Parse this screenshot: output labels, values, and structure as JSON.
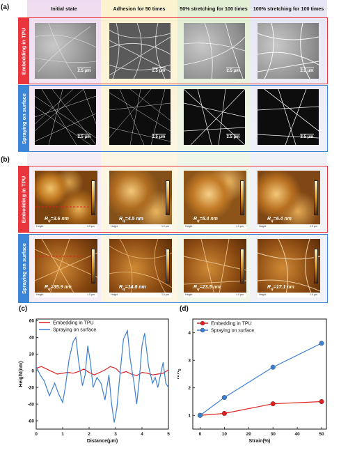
{
  "panel_labels": {
    "a": "(a)",
    "b": "(b)",
    "c": "(c)",
    "d": "(d)"
  },
  "columns": [
    {
      "title": "Initial state",
      "bg": "#eeddf0"
    },
    {
      "title": "Adhesion for 50 times",
      "bg": "#fbf2cf"
    },
    {
      "title": "50% stretching for 100 times",
      "bg": "#e5f0d8"
    },
    {
      "title": "100% stretching for 100 times",
      "bg": "#ececf6"
    }
  ],
  "rows": {
    "tpu": {
      "label": "Embedding in TPU",
      "color": "#e8363c"
    },
    "spray": {
      "label": "Spraying on surface",
      "color": "#3b86d6"
    }
  },
  "sem_scale": "2.5 μm",
  "afm": {
    "height_label": "Height",
    "scale": "1.0 μm",
    "tpu_rq": [
      "=3.6 nm",
      "=4.5 nm",
      "=5.4 nm",
      "=6.4 nm"
    ],
    "spray_rq": [
      "=35.9 nm",
      "=14.8 nm",
      "=23.5 nm",
      "=17.1 nm"
    ],
    "rq_symbol": "R",
    "rq_sub": "q"
  },
  "chart_data": [
    {
      "type": "line",
      "xlabel": "Distance(μm)",
      "ylabel": "Height(nm)",
      "xlim": [
        0,
        5
      ],
      "ylim": [
        -70,
        62
      ],
      "xticks": [
        "0",
        "1",
        "2",
        "3",
        "4",
        "5"
      ],
      "yticks": [
        "60",
        "40",
        "20",
        "0",
        "-20",
        "-40",
        "-60"
      ],
      "series": [
        {
          "name": "Embedding in TPU",
          "color": "#e02020",
          "x": [
            0,
            0.2,
            0.4,
            0.6,
            0.8,
            1.0,
            1.2,
            1.4,
            1.6,
            1.8,
            2.0,
            2.2,
            2.4,
            2.6,
            2.8,
            3.0,
            3.2,
            3.4,
            3.6,
            3.8,
            4.0,
            4.2,
            4.4,
            4.6,
            4.8,
            5.0
          ],
          "y": [
            3,
            5,
            2,
            -1,
            -4,
            -3,
            -2,
            -3,
            -1,
            2,
            -2,
            -5,
            -2,
            1,
            5,
            3,
            -3,
            -1,
            -4,
            -6,
            -2,
            -3,
            -5,
            -4,
            -3,
            1
          ]
        },
        {
          "name": "Spraying on surface",
          "color": "#3a80d0",
          "x": [
            0,
            0.15,
            0.3,
            0.5,
            0.7,
            0.85,
            1.0,
            1.1,
            1.25,
            1.4,
            1.5,
            1.6,
            1.75,
            1.85,
            1.95,
            2.05,
            2.15,
            2.3,
            2.45,
            2.6,
            2.75,
            2.85,
            2.95,
            3.05,
            3.15,
            3.3,
            3.45,
            3.55,
            3.7,
            3.8,
            3.9,
            4.0,
            4.1,
            4.25,
            4.4,
            4.5,
            4.6,
            4.7,
            4.8,
            4.9,
            5.0
          ],
          "y": [
            5,
            -5,
            -12,
            -30,
            -15,
            -28,
            -38,
            -20,
            15,
            35,
            40,
            12,
            -18,
            -5,
            30,
            10,
            -20,
            -8,
            -15,
            -35,
            -5,
            -40,
            -62,
            -45,
            -10,
            38,
            48,
            15,
            -15,
            -40,
            -10,
            30,
            45,
            5,
            -15,
            -8,
            -20,
            -5,
            10,
            -15,
            -20
          ]
        }
      ]
    },
    {
      "type": "line",
      "xlabel": "Strain(%)",
      "ylabel": "R/R",
      "ylabel_sub": "0",
      "xlim": [
        -3,
        52
      ],
      "ylim": [
        0.5,
        4.5
      ],
      "xticks": [
        "0",
        "10",
        "20",
        "30",
        "40",
        "50"
      ],
      "yticks": [
        "1",
        "2",
        "3",
        "4"
      ],
      "series": [
        {
          "name": "Embedding in TPU",
          "color": "#e02020",
          "x": [
            0,
            10,
            30,
            50
          ],
          "y": [
            1.0,
            1.07,
            1.42,
            1.5
          ]
        },
        {
          "name": "Spraying on surface",
          "color": "#3a80d0",
          "x": [
            0,
            10,
            30,
            50
          ],
          "y": [
            1.0,
            1.65,
            2.75,
            3.62
          ]
        }
      ]
    }
  ]
}
